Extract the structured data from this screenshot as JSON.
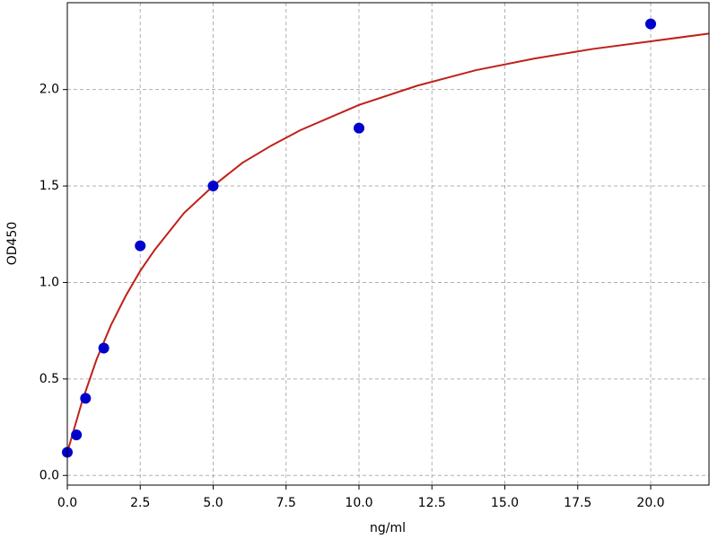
{
  "chart_data": {
    "type": "scatter",
    "xlabel": "ng/ml",
    "ylabel": "OD450",
    "xlim": [
      0,
      22
    ],
    "ylim": [
      -0.05,
      2.45
    ],
    "xticks": [
      {
        "value": 0,
        "label": "0.0"
      },
      {
        "value": 2.5,
        "label": "2.5"
      },
      {
        "value": 5,
        "label": "5.0"
      },
      {
        "value": 7.5,
        "label": "7.5"
      },
      {
        "value": 10,
        "label": "10.0"
      },
      {
        "value": 12.5,
        "label": "12.5"
      },
      {
        "value": 15,
        "label": "15.0"
      },
      {
        "value": 17.5,
        "label": "17.5"
      },
      {
        "value": 20,
        "label": "20.0"
      }
    ],
    "yticks": [
      {
        "value": 0,
        "label": "0.0"
      },
      {
        "value": 0.5,
        "label": "0.5"
      },
      {
        "value": 1,
        "label": "1.0"
      },
      {
        "value": 1.5,
        "label": "1.5"
      },
      {
        "value": 2,
        "label": "2.0"
      }
    ],
    "grid": true,
    "series": [
      {
        "type": "scatter",
        "color": "#0000cc",
        "x": [
          0,
          0.3125,
          0.625,
          1.25,
          2.5,
          5,
          10,
          20
        ],
        "values": [
          0.12,
          0.21,
          0.4,
          0.66,
          1.19,
          1.5,
          1.8,
          2.34
        ]
      },
      {
        "type": "line",
        "color": "#c0201a",
        "x": [
          0,
          0.5,
          1,
          1.5,
          2,
          2.5,
          3,
          4,
          5,
          6,
          7,
          8,
          10,
          12,
          14,
          16,
          18,
          20,
          22
        ],
        "values": [
          0.12,
          0.38,
          0.6,
          0.78,
          0.93,
          1.06,
          1.17,
          1.36,
          1.5,
          1.62,
          1.71,
          1.79,
          1.92,
          2.02,
          2.1,
          2.16,
          2.21,
          2.25,
          2.29
        ]
      }
    ]
  }
}
